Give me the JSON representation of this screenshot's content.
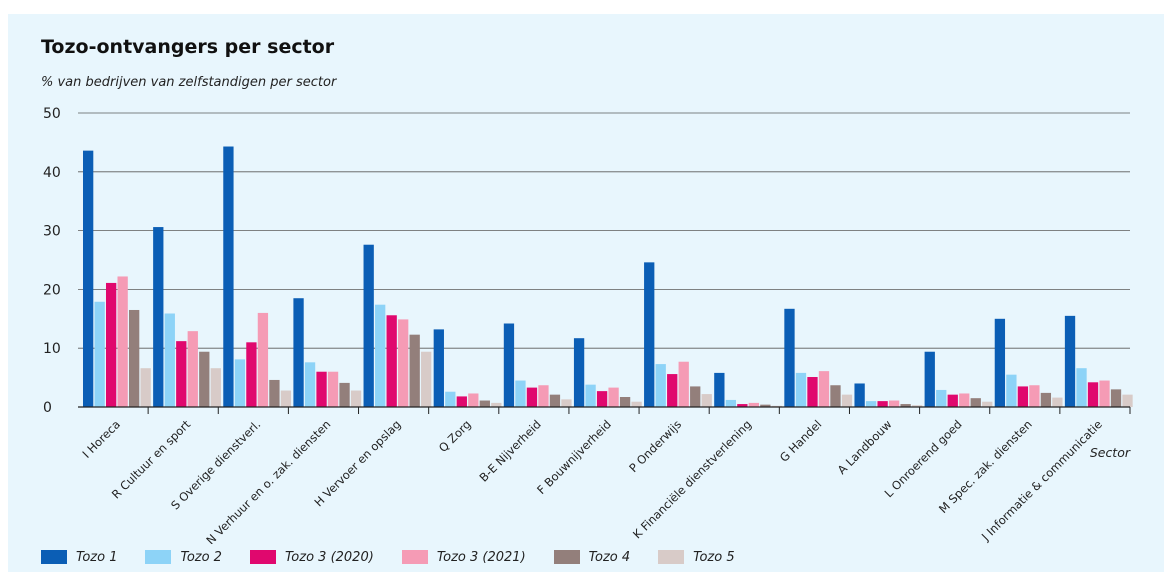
{
  "chart_data": {
    "type": "bar",
    "title": "Tozo-ontvangers per sector",
    "subtitle": "% van bedrijven van zelfstandigen per sector",
    "xlabel": "Sector",
    "ylabel": "",
    "ylim": [
      0,
      50
    ],
    "yticks": [
      0,
      10,
      20,
      30,
      40,
      50
    ],
    "grid": true,
    "legend_position": "bottom",
    "categories": [
      "I Horeca",
      "R Cultuur en sport",
      "S Overige dienstverl.",
      "N Verhuur en o. zak. diensten",
      "H Vervoer en opslag",
      "Q Zorg",
      "B-E Nijverheid",
      "F Bouwnijverheid",
      "P Onderwijs",
      "K Financiële dienstverlening",
      "G Handel",
      "A Landbouw",
      "L Onroerend  goed",
      "M Spec. zak. diensten",
      "J Informatie & communicatie"
    ],
    "series": [
      {
        "name": "Tozo 1",
        "color": "#0b5eb5",
        "values": [
          43.6,
          30.6,
          44.3,
          18.5,
          27.6,
          13.2,
          14.2,
          11.7,
          24.6,
          5.8,
          16.7,
          4.0,
          9.4,
          15.0,
          15.5
        ]
      },
      {
        "name": "Tozo 2",
        "color": "#8dd3f7",
        "values": [
          17.9,
          15.9,
          8.1,
          7.6,
          17.4,
          2.6,
          4.5,
          3.8,
          7.3,
          1.2,
          5.8,
          1.0,
          2.9,
          5.5,
          6.6
        ]
      },
      {
        "name": "Tozo 3 (2020)",
        "color": "#e0086e",
        "values": [
          21.1,
          11.2,
          11.0,
          6.0,
          15.6,
          1.8,
          3.3,
          2.7,
          5.6,
          0.5,
          5.1,
          1.0,
          2.1,
          3.5,
          4.2
        ]
      },
      {
        "name": "Tozo 3 (2021)",
        "color": "#f59bb5",
        "values": [
          22.2,
          12.9,
          16.0,
          6.0,
          14.9,
          2.3,
          3.7,
          3.3,
          7.7,
          0.7,
          6.1,
          1.1,
          2.3,
          3.7,
          4.5
        ]
      },
      {
        "name": "Tozo 4",
        "color": "#937f7b",
        "values": [
          16.5,
          9.4,
          4.6,
          4.1,
          12.3,
          1.1,
          2.1,
          1.7,
          3.5,
          0.4,
          3.7,
          0.5,
          1.5,
          2.4,
          3.0
        ]
      },
      {
        "name": "Tozo 5",
        "color": "#d8cbc8",
        "values": [
          6.6,
          6.6,
          2.8,
          2.8,
          9.4,
          0.7,
          1.3,
          0.9,
          2.2,
          0.2,
          2.1,
          0.3,
          0.9,
          1.6,
          2.1
        ]
      }
    ]
  }
}
